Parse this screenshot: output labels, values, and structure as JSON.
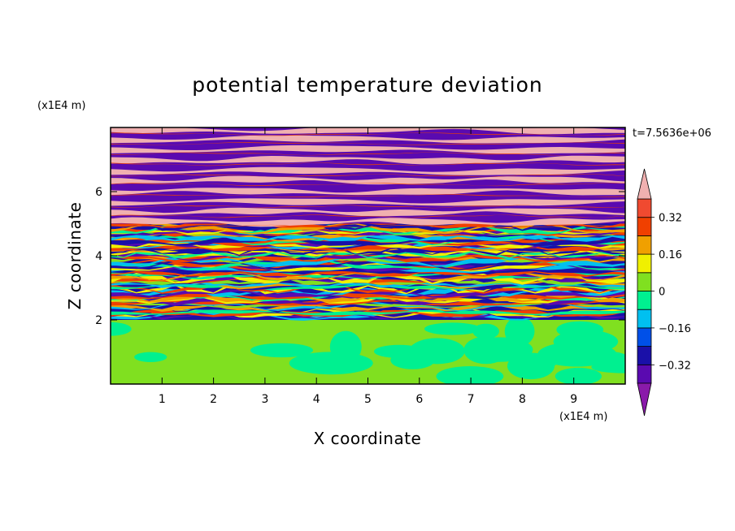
{
  "chart_data": {
    "type": "heatmap",
    "title": "potential temperature deviation",
    "xlabel": "X coordinate",
    "ylabel": "Z coordinate",
    "x_unit": "(x1E4 m)",
    "y_unit": "(x1E4 m)",
    "time_label": "t=7.5636e+06",
    "xlim": [
      0,
      10
    ],
    "ylim": [
      0,
      8
    ],
    "x_ticks": [
      1,
      2,
      3,
      4,
      5,
      6,
      7,
      8,
      9
    ],
    "y_ticks": [
      2,
      4,
      6
    ],
    "x_tick_labels": [
      "1",
      "2",
      "3",
      "4",
      "5",
      "6",
      "7",
      "8",
      "9"
    ],
    "y_tick_labels": [
      "2",
      "4",
      "6"
    ],
    "colorbar": {
      "levels": [
        -0.4,
        -0.32,
        -0.24,
        -0.16,
        -0.08,
        0,
        0.08,
        0.16,
        0.24,
        0.32,
        0.4
      ],
      "labeled_levels": [
        0.32,
        0.16,
        0,
        -0.16,
        -0.32
      ],
      "labels": [
        "0.32",
        "0.16",
        "0",
        "−0.16",
        "−0.32"
      ],
      "colors_low_to_high": [
        "#8a1aaa",
        "#5a0ab0",
        "#1a10a8",
        "#0050e8",
        "#00c0f0",
        "#00f090",
        "#80e020",
        "#f0f000",
        "#f0a000",
        "#f04000",
        "#f04a30",
        "#f0b0b0"
      ],
      "extend": "both"
    },
    "regions": [
      {
        "z_range": [
          0,
          2.0
        ],
        "pattern": "green blobs",
        "colors": [
          "#80e020",
          "#00f090"
        ]
      },
      {
        "z_range": [
          2.0,
          5.0
        ],
        "pattern": "turbulent multi-color stratified layers",
        "colors": [
          "#1a10a8",
          "#00c0f0",
          "#f0f000",
          "#f04000",
          "#80e020"
        ]
      },
      {
        "z_range": [
          5.0,
          8.0
        ],
        "pattern": "alternating horizontal bands",
        "colors": [
          "#8a1aaa",
          "#f0b0b0"
        ]
      }
    ]
  }
}
